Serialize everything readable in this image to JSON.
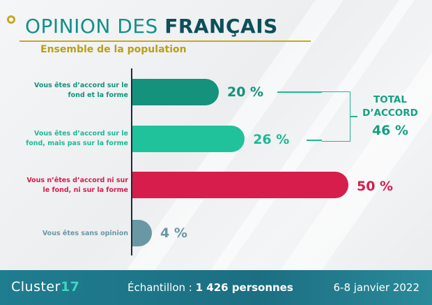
{
  "header": {
    "title_light": "OPINION DES ",
    "title_bold": "FRANÇAIS",
    "subtitle": "Ensemble de la population"
  },
  "colors": {
    "accord_fond_forme": "#14927c",
    "accord_fond": "#1fc29b",
    "desaccord": "#d61d4c",
    "sans_opinion": "#6a97a4",
    "gold": "#c9a81e"
  },
  "chart_data": {
    "type": "bar",
    "orientation": "horizontal",
    "categories": [
      "Vous êtes d’accord sur le fond et la forme",
      "Vous êtes d’accord sur le fond, mais pas sur la forme",
      "Vous n’êtes d’accord ni sur le fond, ni sur la forme",
      "Vous êtes sans opinion"
    ],
    "values": [
      20,
      26,
      50,
      4
    ],
    "value_labels": [
      "20 %",
      "26 %",
      "50 %",
      "4 %"
    ],
    "xlim": [
      0,
      50
    ],
    "grid": false,
    "annotation": {
      "line1": "TOTAL",
      "line2": "D’ACCORD",
      "value": "46 %"
    }
  },
  "footer": {
    "brand_light": "Cluster",
    "brand_bold": "17",
    "sample_prefix": "Échantillon : ",
    "sample_value": "1 426 personnes",
    "date": "6-8 janvier 2022"
  }
}
